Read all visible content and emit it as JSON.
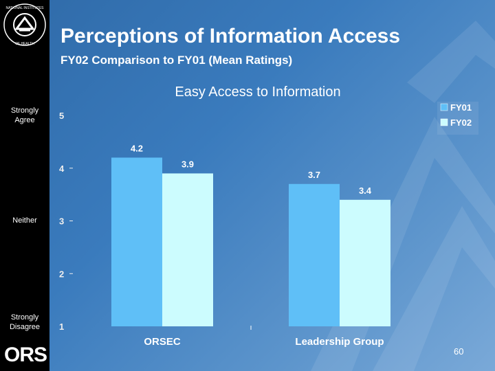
{
  "slide": {
    "title": "Perceptions of Information Access",
    "subtitle": "FY02 Comparison to FY01 (Mean Ratings)",
    "logo_text": "ORS",
    "seal_text": "NATIONAL INSTITUTES OF HEALTH",
    "page_number": "60"
  },
  "scale_labels": {
    "top": [
      "Strongly",
      "Agree"
    ],
    "middle": "Neither",
    "bottom": [
      "Strongly",
      "Disagree"
    ]
  },
  "chart_data": {
    "type": "bar",
    "title": "Easy Access to Information",
    "categories": [
      "ORSEC",
      "Leadership Group"
    ],
    "series": [
      {
        "name": "FY01",
        "values": [
          4.2,
          3.7
        ],
        "color": "#5fbff7"
      },
      {
        "name": "FY02",
        "values": [
          3.9,
          3.4
        ],
        "color": "#ccfcfe"
      }
    ],
    "yticks": [
      "1",
      "2",
      "3",
      "4",
      "5"
    ],
    "ylim": [
      1,
      5
    ],
    "xlabel": "",
    "ylabel": "",
    "legend_position": "top-right",
    "grid": false
  },
  "colors": {
    "background": "#3a7bbd",
    "sidebar": "#000000",
    "text": "#ffffff",
    "tick_text": "#eeeeee"
  }
}
